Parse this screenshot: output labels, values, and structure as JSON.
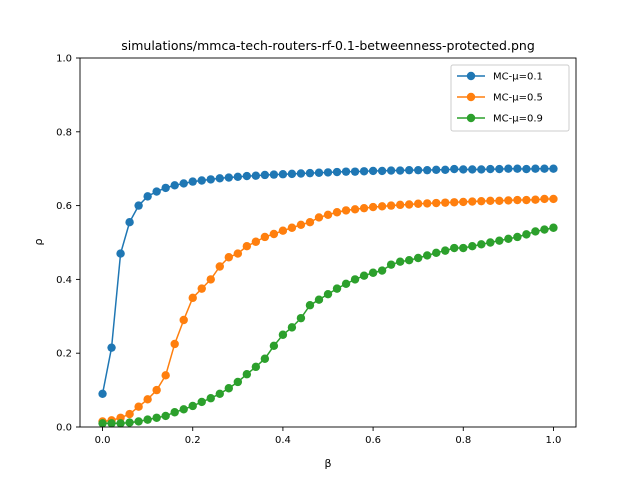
{
  "chart_data": {
    "type": "line",
    "title": "simulations/mmca-tech-routers-rf-0.1-betweenness-protected.png",
    "xlabel": "β",
    "ylabel": "ρ",
    "xlim": [
      -0.05,
      1.05
    ],
    "ylim": [
      0.0,
      1.0
    ],
    "xticks": [
      "0.0",
      "0.2",
      "0.4",
      "0.6",
      "0.8",
      "1.0"
    ],
    "yticks": [
      "0.0",
      "0.2",
      "0.4",
      "0.6",
      "0.8",
      "1.0"
    ],
    "grid": false,
    "legend_position": "top-right",
    "x": [
      0.0,
      0.02,
      0.04,
      0.06,
      0.08,
      0.1,
      0.12,
      0.14,
      0.16,
      0.18,
      0.2,
      0.22,
      0.24,
      0.26,
      0.28,
      0.3,
      0.32,
      0.34,
      0.36,
      0.38,
      0.4,
      0.42,
      0.44,
      0.46,
      0.48,
      0.5,
      0.52,
      0.54,
      0.56,
      0.58,
      0.6,
      0.62,
      0.64,
      0.66,
      0.68,
      0.7,
      0.72,
      0.74,
      0.76,
      0.78,
      0.8,
      0.82,
      0.84,
      0.86,
      0.88,
      0.9,
      0.92,
      0.94,
      0.96,
      0.98,
      1.0
    ],
    "series": [
      {
        "name": "MC-μ=0.1",
        "color": "#1f77b4",
        "values": [
          0.09,
          0.215,
          0.47,
          0.555,
          0.6,
          0.625,
          0.638,
          0.648,
          0.655,
          0.66,
          0.665,
          0.668,
          0.671,
          0.674,
          0.676,
          0.678,
          0.68,
          0.681,
          0.683,
          0.684,
          0.685,
          0.686,
          0.687,
          0.688,
          0.689,
          0.69,
          0.691,
          0.692,
          0.692,
          0.693,
          0.694,
          0.694,
          0.695,
          0.695,
          0.696,
          0.696,
          0.696,
          0.697,
          0.697,
          0.699,
          0.698,
          0.698,
          0.698,
          0.699,
          0.699,
          0.7,
          0.7,
          0.699,
          0.7,
          0.7,
          0.7
        ]
      },
      {
        "name": "MC-μ=0.5",
        "color": "#ff7f0e",
        "values": [
          0.015,
          0.018,
          0.025,
          0.035,
          0.055,
          0.075,
          0.1,
          0.14,
          0.225,
          0.29,
          0.35,
          0.375,
          0.4,
          0.435,
          0.46,
          0.47,
          0.49,
          0.502,
          0.515,
          0.523,
          0.532,
          0.54,
          0.548,
          0.555,
          0.568,
          0.575,
          0.582,
          0.587,
          0.59,
          0.593,
          0.596,
          0.598,
          0.6,
          0.602,
          0.603,
          0.605,
          0.606,
          0.607,
          0.608,
          0.609,
          0.61,
          0.611,
          0.612,
          0.613,
          0.613,
          0.614,
          0.615,
          0.615,
          0.616,
          0.618,
          0.618
        ]
      },
      {
        "name": "MC-μ=0.9",
        "color": "#2ca02c",
        "values": [
          0.01,
          0.01,
          0.01,
          0.012,
          0.015,
          0.02,
          0.025,
          0.03,
          0.04,
          0.048,
          0.057,
          0.068,
          0.078,
          0.09,
          0.105,
          0.122,
          0.143,
          0.163,
          0.185,
          0.22,
          0.25,
          0.27,
          0.295,
          0.33,
          0.345,
          0.36,
          0.375,
          0.388,
          0.4,
          0.41,
          0.418,
          0.424,
          0.44,
          0.448,
          0.452,
          0.458,
          0.465,
          0.472,
          0.478,
          0.485,
          0.485,
          0.49,
          0.495,
          0.5,
          0.505,
          0.51,
          0.515,
          0.522,
          0.53,
          0.535,
          0.54
        ]
      }
    ]
  }
}
